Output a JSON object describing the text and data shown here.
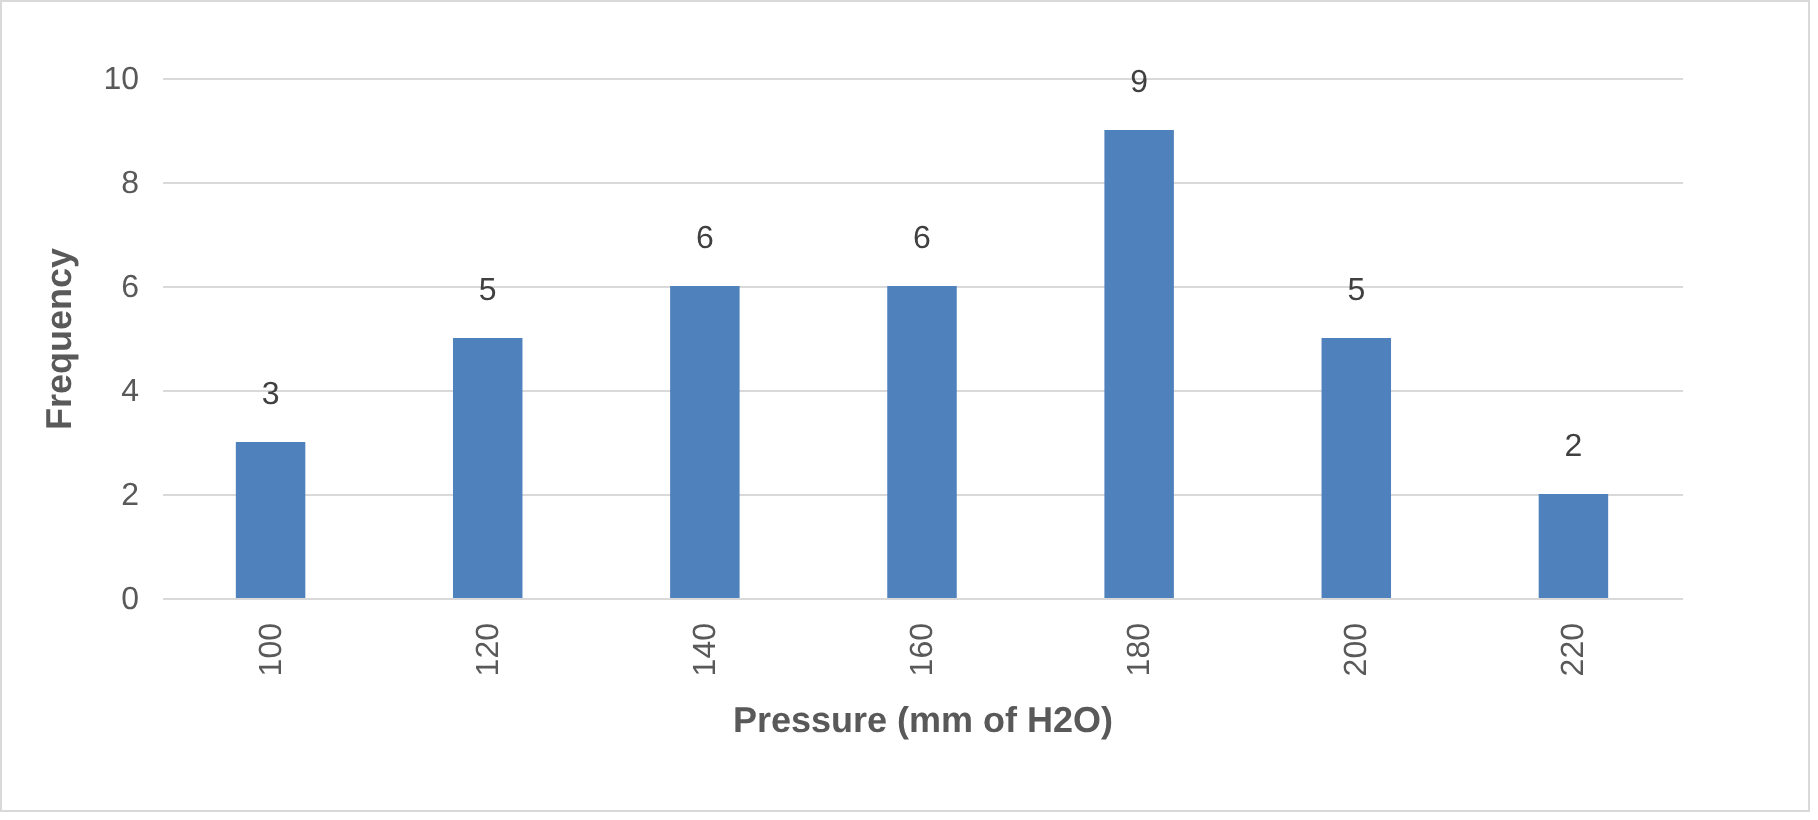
{
  "chart_data": {
    "type": "bar",
    "xlabel": "Pressure (mm of H2O)",
    "ylabel": "Frequency",
    "categories": [
      "100",
      "120",
      "140",
      "160",
      "180",
      "200",
      "220"
    ],
    "values": [
      3,
      5,
      6,
      6,
      9,
      5,
      2
    ],
    "color": "#4f81bd",
    "ylim": [
      0,
      10
    ],
    "yticks": [
      0,
      2,
      4,
      6,
      8,
      10
    ],
    "grid": "y",
    "data_labels": true
  }
}
